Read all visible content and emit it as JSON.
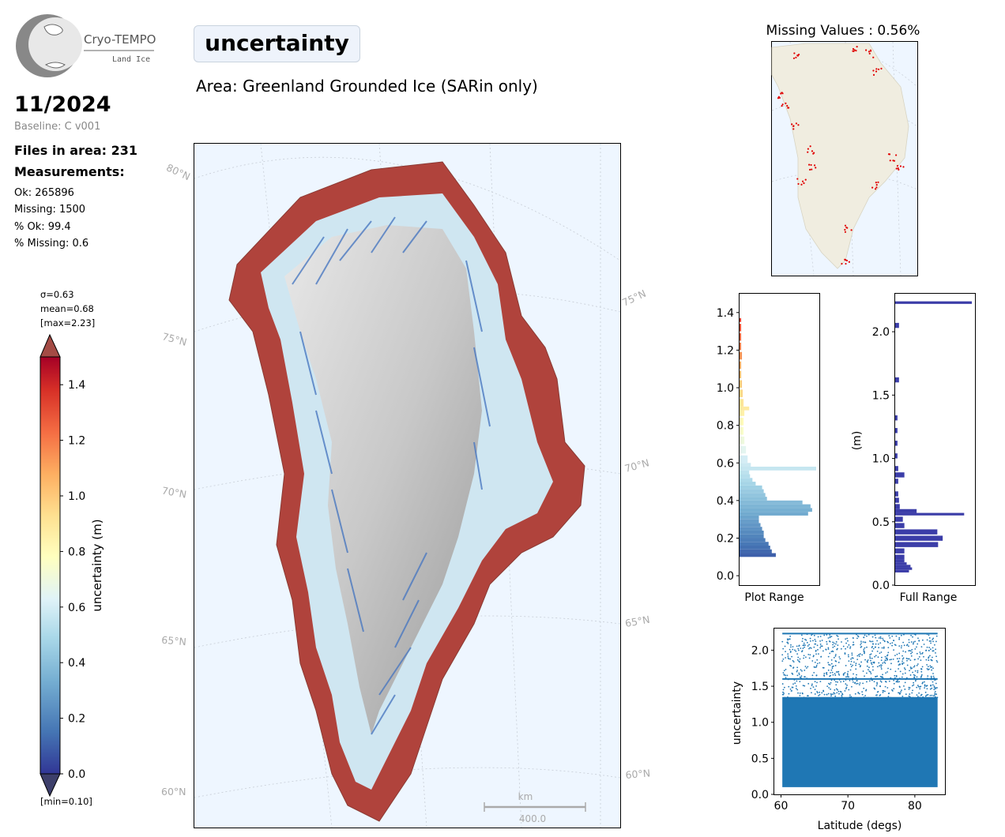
{
  "logo": {
    "name": "Cryo-TEMPO",
    "sub": "Land Ice"
  },
  "header": {
    "title": "uncertainty",
    "area": "Area: Greenland Grounded Ice (SARin only)",
    "date": "11/2024",
    "baseline": "Baseline: C v001"
  },
  "stats": {
    "files": "Files in area: 231",
    "measurements": "Measurements:",
    "ok": "Ok: 265896",
    "missing": "Missing: 1500",
    "pct_ok": "% Ok: 99.4",
    "pct_missing": "% Missing: 0.6"
  },
  "colorbar": {
    "sigma": "σ=0.63",
    "mean": "mean=0.68",
    "max": "[max=2.23]",
    "min": "[min=0.10]",
    "label": "uncertainty (m)",
    "ticks": [
      "0.0",
      "0.2",
      "0.4",
      "0.6",
      "0.8",
      "1.0",
      "1.2",
      "1.4"
    ],
    "range": [
      0,
      1.5
    ]
  },
  "map": {
    "lat_labels_left": [
      "80°N",
      "75°N",
      "70°N",
      "65°N",
      "60°N"
    ],
    "lat_labels_right": [
      "75°N",
      "70°N",
      "65°N",
      "60°N"
    ],
    "scale_unit": "km",
    "scale_value": "400.0"
  },
  "missing_map": {
    "title": "Missing Values : 0.56%"
  },
  "colors": {
    "missing": "#e00000",
    "hist_full": "#3b3da8",
    "scatter": "#1f77b4",
    "ocean": "#eef6ff",
    "land": "#f0ede0"
  },
  "chart_data": [
    {
      "type": "bar",
      "orientation": "horizontal",
      "name": "plot-range-histogram",
      "xlabel": "Plot Range",
      "ylabel": "",
      "ylim": [
        -0.05,
        1.5
      ],
      "yticks": [
        "0.0",
        "0.2",
        "0.4",
        "0.6",
        "0.8",
        "1.0",
        "1.2",
        "1.4"
      ],
      "bins": [
        0.1,
        0.12,
        0.14,
        0.16,
        0.18,
        0.2,
        0.22,
        0.24,
        0.26,
        0.28,
        0.3,
        0.32,
        0.34,
        0.36,
        0.38,
        0.4,
        0.42,
        0.44,
        0.46,
        0.48,
        0.5,
        0.52,
        0.54,
        0.56,
        0.58,
        0.6,
        0.65,
        0.7,
        0.75,
        0.8,
        0.85,
        0.88,
        0.9,
        0.95,
        1.0,
        1.05,
        1.1,
        1.15,
        1.2,
        1.25,
        1.3,
        1.35
      ],
      "values": [
        0.45,
        0.4,
        0.38,
        0.36,
        0.32,
        0.3,
        0.3,
        0.28,
        0.26,
        0.24,
        0.24,
        0.85,
        0.9,
        0.88,
        0.78,
        0.34,
        0.32,
        0.3,
        0.28,
        0.2,
        0.16,
        0.13,
        0.12,
        0.95,
        0.14,
        0.1,
        0.08,
        0.06,
        0.05,
        0.05,
        0.06,
        0.12,
        0.05,
        0.04,
        0.03,
        0.02,
        0.02,
        0.03,
        0.02,
        0.02,
        0.02,
        0.02
      ]
    },
    {
      "type": "bar",
      "orientation": "horizontal",
      "name": "full-range-histogram",
      "xlabel": "Full Range",
      "ylabel": "(m)",
      "ylim": [
        0,
        2.3
      ],
      "yticks": [
        "0.0",
        "0.5",
        "1.0",
        "1.5",
        "2.0"
      ],
      "bins": [
        0.1,
        0.12,
        0.14,
        0.16,
        0.18,
        0.2,
        0.25,
        0.3,
        0.35,
        0.4,
        0.45,
        0.5,
        0.55,
        0.57,
        0.6,
        0.65,
        0.7,
        0.8,
        0.85,
        0.9,
        1.0,
        1.1,
        1.2,
        1.3,
        1.6,
        2.03,
        2.22
      ],
      "values": [
        0.18,
        0.22,
        0.2,
        0.15,
        0.12,
        0.12,
        0.12,
        0.56,
        0.62,
        0.55,
        0.12,
        0.1,
        0.9,
        0.28,
        0.06,
        0.05,
        0.04,
        0.04,
        0.12,
        0.04,
        0.03,
        0.03,
        0.03,
        0.03,
        0.05,
        0.05,
        1.0
      ]
    },
    {
      "type": "scatter",
      "name": "latitude-scatter",
      "xlabel": "Latitude (degs)",
      "ylabel": "uncertainty",
      "xlim": [
        59,
        84.5
      ],
      "ylim": [
        0,
        2.3
      ],
      "xticks": [
        "60",
        "70",
        "80"
      ],
      "yticks": [
        "0.0",
        "0.5",
        "1.0",
        "1.5",
        "2.0"
      ],
      "series": [
        {
          "x_range": [
            60.2,
            83.4
          ],
          "y_range": [
            0.1,
            2.23
          ]
        }
      ]
    }
  ]
}
